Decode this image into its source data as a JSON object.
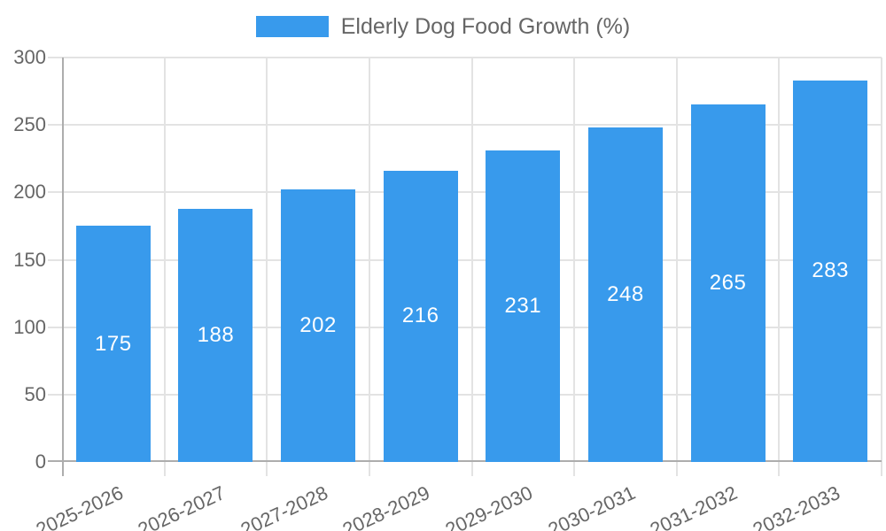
{
  "chart_data": {
    "type": "bar",
    "title": "Elderly Dog Food Growth (%)",
    "categories": [
      "2025-2026",
      "2026-2027",
      "2027-2028",
      "2028-2029",
      "2029-2030",
      "2030-2031",
      "2031-2032",
      "2032-2033"
    ],
    "values": [
      175,
      188,
      202,
      216,
      231,
      248,
      265,
      283
    ],
    "xlabel": "",
    "ylabel": "",
    "ylim": [
      0,
      300
    ],
    "yticks": [
      0,
      50,
      100,
      150,
      200,
      250,
      300
    ],
    "legend_position": "top",
    "grid": true,
    "value_labels": "centered-inside-bars",
    "x_label_rotation_deg": -25,
    "colors": {
      "bar": "#389AEC",
      "value_label": "#FFFFFF",
      "axis_line": "#ADADAD",
      "grid_line": "#E3E3E3",
      "tick_label": "#666666",
      "legend_text": "#666666",
      "background": "#FFFFFF"
    }
  }
}
